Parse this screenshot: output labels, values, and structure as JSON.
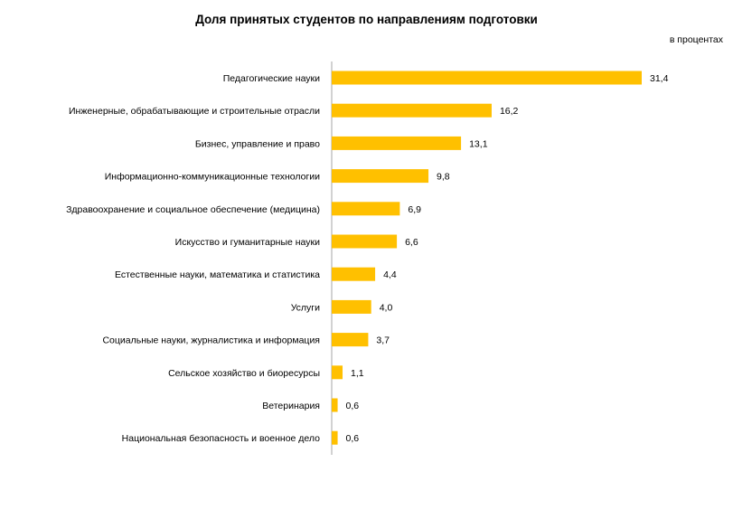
{
  "chart_data": {
    "type": "bar",
    "orientation": "horizontal",
    "title": "Доля принятых студентов по направлениям подготовки",
    "unit_label": "в процентах",
    "categories": [
      "Педагогические науки",
      "Инженерные, обрабатывающие и строительные отрасли",
      "Бизнес, управление и право",
      "Информационно-коммуникационные технологии",
      "Здравоохранение и социальное обеспечение (медицина)",
      "Искусство и гуманитарные науки",
      "Естественные науки, математика и статистика",
      "Услуги",
      "Социальные науки, журналистика и информация",
      "Сельское хозяйство и биоресурсы",
      "Ветеринария",
      "Национальная безопасность и военное дело"
    ],
    "values": [
      31.4,
      16.2,
      13.1,
      9.8,
      6.9,
      6.6,
      4.4,
      4.0,
      3.7,
      1.1,
      0.6,
      0.6
    ],
    "value_labels": [
      "31,4",
      "16,2",
      "13,1",
      "9,8",
      "6,9",
      "6,6",
      "4,4",
      "4,0",
      "3,7",
      "1,1",
      "0,6",
      "0,6"
    ],
    "xlim": [
      0,
      31.4
    ],
    "bar_color": "#FFC000",
    "grid": false,
    "legend": "none"
  }
}
